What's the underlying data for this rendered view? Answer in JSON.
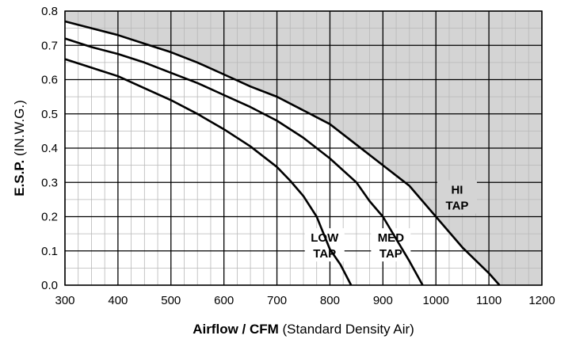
{
  "chart_data": {
    "type": "line",
    "xlabel_bold": "Airflow / CFM",
    "xlabel_rest": " (Standard Density Air)",
    "ylabel_bold": "E.S.P.",
    "ylabel_rest": " (IN.W.G.)",
    "xlim": [
      300,
      1200
    ],
    "ylim": [
      0,
      0.8
    ],
    "x_ticks": [
      300,
      400,
      500,
      600,
      700,
      800,
      900,
      1000,
      1100,
      1200
    ],
    "y_ticks": [
      "0.0",
      "0.1",
      "0.2",
      "0.3",
      "0.4",
      "0.5",
      "0.6",
      "0.7",
      "0.8"
    ],
    "grid": true,
    "shaded_region": "above HI TAP curve",
    "shade_color": "#d4d4d4",
    "series": [
      {
        "label_lines": [
          "LOW",
          "TAP"
        ],
        "points": [
          [
            300,
            0.66
          ],
          [
            350,
            0.635
          ],
          [
            400,
            0.61
          ],
          [
            450,
            0.575
          ],
          [
            500,
            0.54
          ],
          [
            550,
            0.5
          ],
          [
            600,
            0.455
          ],
          [
            650,
            0.405
          ],
          [
            700,
            0.345
          ],
          [
            725,
            0.305
          ],
          [
            750,
            0.26
          ],
          [
            775,
            0.2
          ],
          [
            800,
            0.105
          ],
          [
            820,
            0.06
          ],
          [
            840,
            0.0
          ]
        ]
      },
      {
        "label_lines": [
          "MED",
          "TAP"
        ],
        "points": [
          [
            300,
            0.72
          ],
          [
            350,
            0.695
          ],
          [
            400,
            0.675
          ],
          [
            450,
            0.65
          ],
          [
            500,
            0.62
          ],
          [
            550,
            0.59
          ],
          [
            600,
            0.555
          ],
          [
            650,
            0.52
          ],
          [
            700,
            0.48
          ],
          [
            750,
            0.43
          ],
          [
            800,
            0.37
          ],
          [
            850,
            0.3
          ],
          [
            875,
            0.245
          ],
          [
            900,
            0.2
          ],
          [
            950,
            0.07
          ],
          [
            975,
            0.0
          ]
        ]
      },
      {
        "label_lines": [
          "HI",
          "TAP"
        ],
        "points": [
          [
            300,
            0.77
          ],
          [
            350,
            0.75
          ],
          [
            400,
            0.73
          ],
          [
            450,
            0.705
          ],
          [
            500,
            0.68
          ],
          [
            550,
            0.65
          ],
          [
            600,
            0.615
          ],
          [
            650,
            0.58
          ],
          [
            700,
            0.55
          ],
          [
            750,
            0.51
          ],
          [
            800,
            0.47
          ],
          [
            850,
            0.41
          ],
          [
            900,
            0.35
          ],
          [
            950,
            0.29
          ],
          [
            1000,
            0.2
          ],
          [
            1050,
            0.11
          ],
          [
            1100,
            0.035
          ],
          [
            1120,
            0.0
          ]
        ]
      }
    ]
  }
}
